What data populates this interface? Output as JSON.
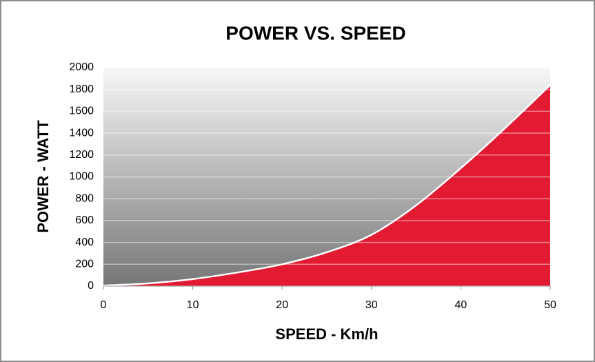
{
  "chart_data": {
    "type": "area",
    "title": "POWER VS. SPEED",
    "x_label": "SPEED - Km/h",
    "y_label": "POWER - WATT",
    "x": [
      0,
      5,
      10,
      15,
      20,
      25,
      30,
      35,
      40,
      45,
      50
    ],
    "series": [
      {
        "name": "Power",
        "color": "#e31b32",
        "values": [
          5,
          25,
          65,
          125,
          200,
          310,
          470,
          740,
          1080,
          1450,
          1840
        ]
      }
    ],
    "xlim": [
      0,
      50
    ],
    "xticks": [
      0,
      10,
      20,
      30,
      40,
      50
    ],
    "ylim": [
      0,
      2000
    ],
    "yticks": [
      0,
      200,
      400,
      600,
      800,
      1000,
      1200,
      1400,
      1600,
      1800,
      2000
    ],
    "grid": true
  }
}
